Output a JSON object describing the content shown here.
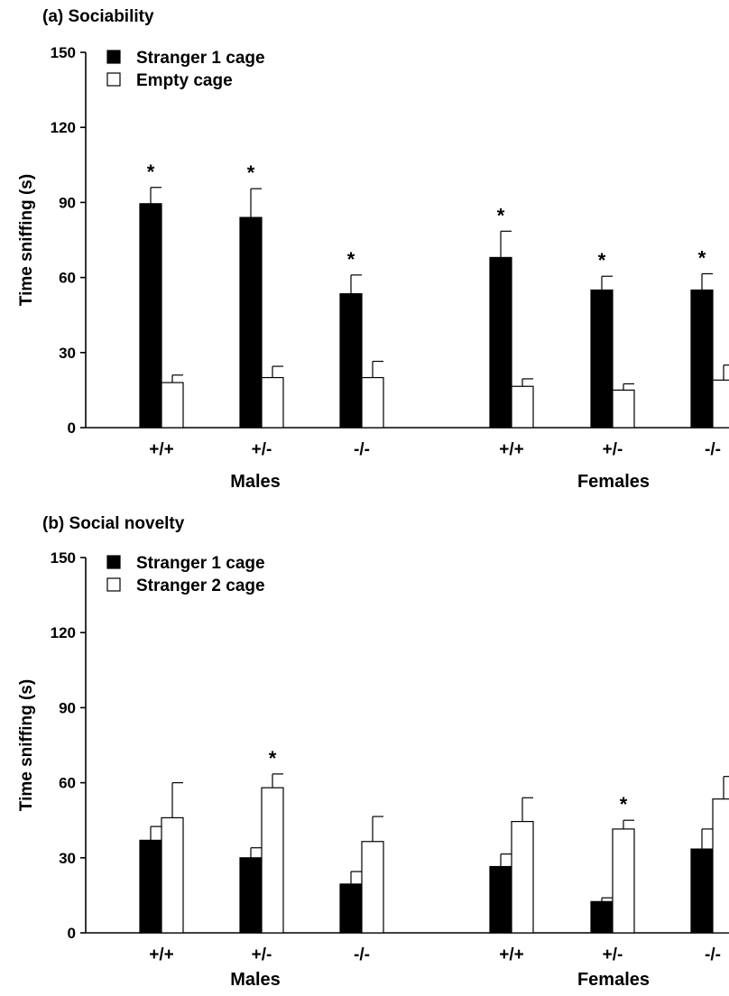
{
  "figure": {
    "colors": {
      "stranger1": "#000000",
      "other": "#ffffff",
      "axis": "#000000"
    },
    "panels": [
      {
        "id": "a",
        "title": "(a)  Sociability",
        "ylabel": "Time sniffing (s)",
        "legend": [
          "Stranger 1 cage",
          "Empty cage"
        ],
        "groups": [
          "Males",
          "Females"
        ]
      },
      {
        "id": "b",
        "title": "(b)  Social novelty",
        "ylabel": "Time sniffing (s)",
        "legend": [
          "Stranger 1 cage",
          "Stranger 2 cage"
        ],
        "groups": [
          "Males",
          "Females"
        ]
      }
    ]
  },
  "chart_data": [
    {
      "type": "bar",
      "title": "(a)  Sociability",
      "xlabel": "",
      "ylabel": "Time sniffing (s)",
      "ylim": [
        0,
        150
      ],
      "yticks": [
        0,
        30,
        60,
        90,
        120,
        150
      ],
      "grid": false,
      "legend_position": "top-left",
      "categories": [
        "+/+",
        "+/-",
        "-/-",
        "+/+",
        "+/-",
        "-/-"
      ],
      "category_groups": [
        "Males",
        "Males",
        "Males",
        "Females",
        "Females",
        "Females"
      ],
      "series": [
        {
          "name": "Stranger 1 cage",
          "color": "#000000",
          "values": [
            89.5,
            84,
            53.5,
            68,
            55,
            55
          ],
          "errors": [
            6.5,
            11.5,
            7.5,
            10.5,
            5.5,
            6.5
          ]
        },
        {
          "name": "Empty cage",
          "color": "#ffffff",
          "values": [
            18,
            20,
            20,
            16.5,
            15,
            19
          ],
          "errors": [
            3,
            4.5,
            6.5,
            3,
            2.5,
            6
          ]
        }
      ],
      "significance": [
        "*",
        "*",
        "*",
        "*",
        "*",
        "*"
      ],
      "significance_on": "Stranger 1 cage"
    },
    {
      "type": "bar",
      "title": "(b)  Social novelty",
      "xlabel": "",
      "ylabel": "Time sniffing (s)",
      "ylim": [
        0,
        150
      ],
      "yticks": [
        0,
        30,
        60,
        90,
        120,
        150
      ],
      "grid": false,
      "legend_position": "top-left",
      "categories": [
        "+/+",
        "+/-",
        "-/-",
        "+/+",
        "+/-",
        "-/-"
      ],
      "category_groups": [
        "Males",
        "Males",
        "Males",
        "Females",
        "Females",
        "Females"
      ],
      "series": [
        {
          "name": "Stranger 1 cage",
          "color": "#000000",
          "values": [
            37,
            30,
            19.5,
            26.5,
            12.5,
            33.5
          ],
          "errors": [
            5.5,
            4,
            5,
            5,
            1.5,
            8
          ]
        },
        {
          "name": "Stranger 2 cage",
          "color": "#ffffff",
          "values": [
            46,
            58,
            36.5,
            44.5,
            41.5,
            53.5
          ],
          "errors": [
            14,
            5.5,
            10,
            9.5,
            3.5,
            9
          ]
        }
      ],
      "significance": [
        "",
        "*",
        "",
        "",
        "*",
        ""
      ],
      "significance_on": "Stranger 2 cage"
    }
  ]
}
